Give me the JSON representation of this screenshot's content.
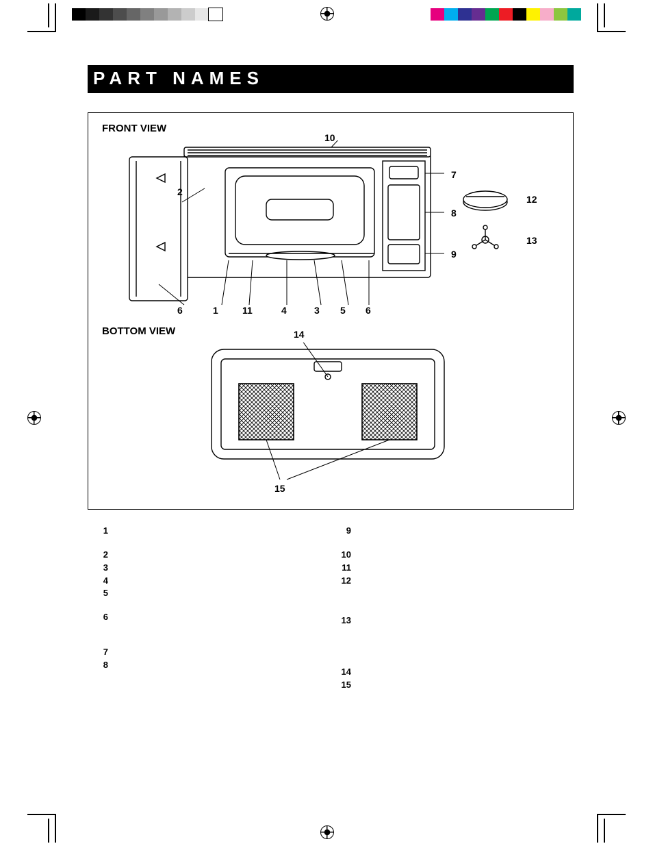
{
  "title": "PART NAMES",
  "views": {
    "front": "FRONT VIEW",
    "bottom": "BOTTOM VIEW"
  },
  "callouts_front_top": [
    "10"
  ],
  "callouts_front_right": [
    "7",
    "8",
    "9",
    "12",
    "13"
  ],
  "callouts_front_inside": [
    "2"
  ],
  "callouts_front_bottom": [
    "6",
    "1",
    "11",
    "4",
    "3",
    "5",
    "6"
  ],
  "callouts_bottom": [
    "14",
    "15"
  ],
  "swatches_gray": [
    "#000000",
    "#1a1a1a",
    "#333333",
    "#4d4d4d",
    "#666666",
    "#808080",
    "#999999",
    "#b3b3b3",
    "#cccccc",
    "#e6e6e6",
    "#ffffff"
  ],
  "swatches_color": [
    "#e6007e",
    "#00aeef",
    "#2e3192",
    "#662d91",
    "#00a651",
    "#ed1c24",
    "#000000",
    "#fff200",
    "#f7adc9",
    "#8dc63f",
    "#00a99d"
  ],
  "list_left": [
    {
      "n": "1",
      "t": ""
    },
    {
      "n": "2",
      "t": ""
    },
    {
      "n": "3",
      "t": ""
    },
    {
      "n": "4",
      "t": ""
    },
    {
      "n": "5",
      "t": ""
    },
    {
      "n": "6",
      "t": ""
    },
    {
      "n": "7",
      "t": ""
    },
    {
      "n": "8",
      "t": ""
    }
  ],
  "list_right": [
    {
      "n": "9",
      "t": ""
    },
    {
      "n": "10",
      "t": ""
    },
    {
      "n": "11",
      "t": ""
    },
    {
      "n": "12",
      "t": ""
    },
    {
      "n": "13",
      "t": ""
    },
    {
      "n": "14",
      "t": ""
    },
    {
      "n": "15",
      "t": ""
    }
  ],
  "diagram": {
    "stroke": "#000000",
    "stroke_width": 1.4,
    "fill": "#ffffff"
  }
}
